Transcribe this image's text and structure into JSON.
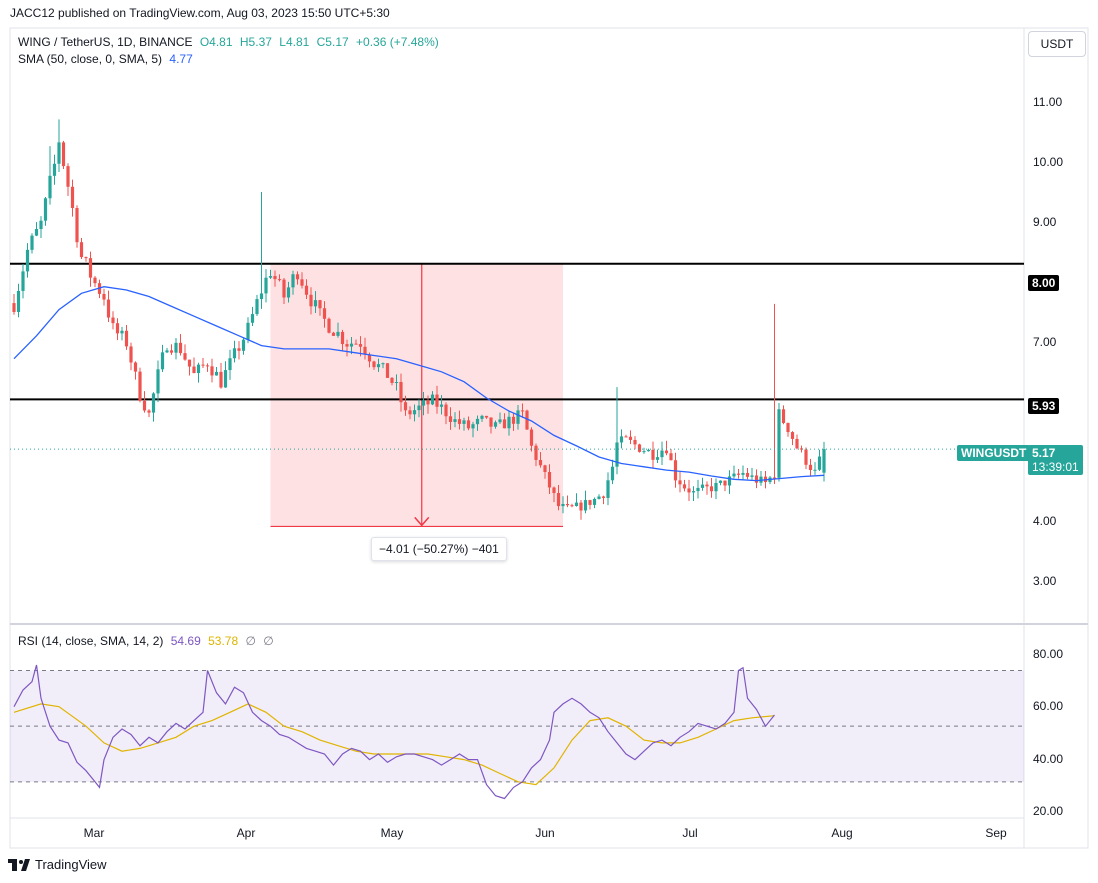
{
  "header": {
    "published": "JACC12 published on TradingView.com, Aug 03, 2023 15:50 UTC+5:30",
    "currency": "USDT"
  },
  "legend": {
    "symbol": "WING / TetherUS, 1D, BINANCE",
    "o": "O4.81",
    "h": "H5.37",
    "l": "L4.81",
    "c": "C5.17",
    "change": "+0.36 (+7.48%)",
    "sma_label": "SMA (50, close, 0, SMA, 5)",
    "sma_value": "4.77"
  },
  "rsi_legend": {
    "label": "RSI (14, close, SMA, 14, 2)",
    "rsi_value": "54.69",
    "ma_value": "53.78",
    "extra1": "∅",
    "extra2": "∅"
  },
  "price_axis": [
    "11.00",
    "10.00",
    "9.00",
    "8.00",
    "7.00",
    "5.93",
    "5.17",
    "4.00",
    "3.00"
  ],
  "rsi_axis": [
    "80.00",
    "60.00",
    "40.00",
    "20.00"
  ],
  "time_axis": [
    "Mar",
    "Apr",
    "May",
    "Jun",
    "Jul",
    "Aug",
    "Sep"
  ],
  "level_badges": {
    "top": "8.00",
    "mid": "5.93"
  },
  "price_badge": {
    "symbol": "WINGUSDT",
    "price": "5.17",
    "countdown": "13:39:01"
  },
  "measure": {
    "label": "−4.01 (−50.27%) −401"
  },
  "footer": {
    "brand": "TradingView"
  },
  "colors": {
    "up": "#26a69a",
    "down": "#ef5350",
    "sma": "#2962ff",
    "rsi": "#7e57c2",
    "rsi_ma": "#e0b400",
    "measure": "#f23645"
  },
  "chart_data": {
    "type": "candlestick",
    "price_ylim": [
      2.5,
      11.6
    ],
    "rsi_ylim": [
      17,
      86
    ],
    "horizontal_levels": [
      8.0,
      5.93
    ],
    "measure_range": {
      "from": 8.0,
      "to": 3.99,
      "start": "2023-04-08",
      "end": "2023-06-12"
    },
    "price_path": [
      [
        0,
        7.4
      ],
      [
        3,
        8.2
      ],
      [
        6,
        8.6
      ],
      [
        9,
        9.5
      ],
      [
        10,
        9.9
      ],
      [
        12,
        9.2
      ],
      [
        15,
        8.1
      ],
      [
        18,
        7.7
      ],
      [
        20,
        7.5
      ],
      [
        22,
        7.0
      ],
      [
        25,
        6.8
      ],
      [
        28,
        6.0
      ],
      [
        30,
        5.7
      ],
      [
        32,
        6.3
      ],
      [
        34,
        6.8
      ],
      [
        37,
        6.7
      ],
      [
        40,
        6.3
      ],
      [
        43,
        6.5
      ],
      [
        46,
        6.2
      ],
      [
        49,
        6.6
      ],
      [
        52,
        7.0
      ],
      [
        55,
        7.6
      ],
      [
        57,
        7.9
      ],
      [
        60,
        7.5
      ],
      [
        63,
        7.9
      ],
      [
        65,
        7.6
      ],
      [
        68,
        7.2
      ],
      [
        71,
        7.0
      ],
      [
        74,
        6.8
      ],
      [
        77,
        6.8
      ],
      [
        80,
        6.5
      ],
      [
        83,
        6.3
      ],
      [
        85,
        6.1
      ],
      [
        87,
        5.7
      ],
      [
        90,
        5.8
      ],
      [
        93,
        5.9
      ],
      [
        95,
        5.8
      ],
      [
        98,
        5.6
      ],
      [
        101,
        5.5
      ],
      [
        104,
        5.6
      ],
      [
        107,
        5.5
      ],
      [
        110,
        5.6
      ],
      [
        113,
        5.7
      ],
      [
        115,
        5.2
      ],
      [
        117,
        4.9
      ],
      [
        119,
        4.6
      ],
      [
        121,
        4.3
      ],
      [
        123,
        4.25
      ],
      [
        126,
        4.3
      ],
      [
        129,
        4.4
      ],
      [
        131,
        4.5
      ],
      [
        133,
        4.9
      ],
      [
        134,
        5.25
      ],
      [
        136,
        5.3
      ],
      [
        139,
        5.2
      ],
      [
        142,
        5.1
      ],
      [
        145,
        5.2
      ],
      [
        147,
        4.75
      ],
      [
        149,
        4.6
      ],
      [
        151,
        4.5
      ],
      [
        153,
        4.55
      ],
      [
        156,
        4.6
      ],
      [
        159,
        4.7
      ],
      [
        162,
        4.8
      ],
      [
        165,
        4.7
      ],
      [
        167,
        4.65
      ],
      [
        169,
        4.8
      ],
      [
        170,
        5.7
      ],
      [
        172,
        5.5
      ],
      [
        174,
        5.2
      ],
      [
        176,
        5.0
      ],
      [
        178,
        4.81
      ],
      [
        180,
        5.17
      ]
    ],
    "candle_count": 181,
    "start_date": "2023-02-10",
    "sma_50": [
      [
        0,
        6.55
      ],
      [
        5,
        6.9
      ],
      [
        10,
        7.3
      ],
      [
        15,
        7.55
      ],
      [
        20,
        7.65
      ],
      [
        25,
        7.6
      ],
      [
        30,
        7.5
      ],
      [
        35,
        7.35
      ],
      [
        40,
        7.2
      ],
      [
        45,
        7.05
      ],
      [
        50,
        6.9
      ],
      [
        55,
        6.75
      ],
      [
        60,
        6.7
      ],
      [
        65,
        6.7
      ],
      [
        70,
        6.7
      ],
      [
        75,
        6.65
      ],
      [
        80,
        6.6
      ],
      [
        85,
        6.55
      ],
      [
        90,
        6.45
      ],
      [
        95,
        6.35
      ],
      [
        100,
        6.2
      ],
      [
        105,
        5.95
      ],
      [
        110,
        5.75
      ],
      [
        115,
        5.6
      ],
      [
        120,
        5.38
      ],
      [
        125,
        5.22
      ],
      [
        130,
        5.05
      ],
      [
        135,
        4.95
      ],
      [
        140,
        4.9
      ],
      [
        145,
        4.85
      ],
      [
        150,
        4.82
      ],
      [
        155,
        4.76
      ],
      [
        160,
        4.71
      ],
      [
        165,
        4.69
      ],
      [
        170,
        4.72
      ],
      [
        175,
        4.75
      ],
      [
        180,
        4.77
      ]
    ],
    "rsi": [
      [
        0,
        57
      ],
      [
        2,
        63
      ],
      [
        4,
        66
      ],
      [
        5,
        72
      ],
      [
        6,
        60
      ],
      [
        8,
        50
      ],
      [
        10,
        45
      ],
      [
        12,
        44
      ],
      [
        14,
        37
      ],
      [
        16,
        34
      ],
      [
        18,
        30
      ],
      [
        19,
        28
      ],
      [
        20,
        38
      ],
      [
        22,
        46
      ],
      [
        24,
        49
      ],
      [
        26,
        47
      ],
      [
        28,
        43
      ],
      [
        30,
        46
      ],
      [
        32,
        44
      ],
      [
        34,
        48
      ],
      [
        36,
        51
      ],
      [
        38,
        49
      ],
      [
        40,
        52
      ],
      [
        42,
        55
      ],
      [
        43,
        70
      ],
      [
        45,
        62
      ],
      [
        47,
        58
      ],
      [
        49,
        64
      ],
      [
        51,
        62
      ],
      [
        53,
        55
      ],
      [
        55,
        52
      ],
      [
        57,
        50
      ],
      [
        59,
        47
      ],
      [
        61,
        46
      ],
      [
        63,
        44
      ],
      [
        65,
        42
      ],
      [
        67,
        41
      ],
      [
        69,
        40
      ],
      [
        71,
        36
      ],
      [
        73,
        40
      ],
      [
        75,
        42
      ],
      [
        77,
        41
      ],
      [
        79,
        38
      ],
      [
        81,
        40
      ],
      [
        83,
        37
      ],
      [
        85,
        39
      ],
      [
        87,
        40
      ],
      [
        89,
        40
      ],
      [
        91,
        39
      ],
      [
        93,
        38
      ],
      [
        95,
        36
      ],
      [
        97,
        38
      ],
      [
        99,
        40
      ],
      [
        101,
        38
      ],
      [
        103,
        38
      ],
      [
        105,
        29
      ],
      [
        107,
        25
      ],
      [
        109,
        24
      ],
      [
        111,
        28
      ],
      [
        113,
        30
      ],
      [
        115,
        35
      ],
      [
        117,
        38
      ],
      [
        119,
        45
      ],
      [
        120,
        55
      ],
      [
        122,
        58
      ],
      [
        124,
        60
      ],
      [
        126,
        58
      ],
      [
        128,
        55
      ],
      [
        130,
        53
      ],
      [
        132,
        48
      ],
      [
        134,
        44
      ],
      [
        136,
        40
      ],
      [
        138,
        38
      ],
      [
        140,
        41
      ],
      [
        142,
        44
      ],
      [
        144,
        45
      ],
      [
        146,
        43
      ],
      [
        148,
        46
      ],
      [
        150,
        48
      ],
      [
        152,
        51
      ],
      [
        154,
        50
      ],
      [
        156,
        49
      ],
      [
        158,
        51
      ],
      [
        160,
        55
      ],
      [
        161,
        70
      ],
      [
        162,
        71
      ],
      [
        163,
        60
      ],
      [
        165,
        56
      ],
      [
        167,
        50
      ],
      [
        169,
        54
      ]
    ],
    "rsi_ma": [
      [
        0,
        55
      ],
      [
        6,
        58
      ],
      [
        10,
        57
      ],
      [
        16,
        50
      ],
      [
        20,
        44
      ],
      [
        24,
        41
      ],
      [
        28,
        42
      ],
      [
        32,
        44
      ],
      [
        36,
        46
      ],
      [
        40,
        50
      ],
      [
        44,
        52
      ],
      [
        48,
        55
      ],
      [
        52,
        58
      ],
      [
        56,
        55
      ],
      [
        60,
        50
      ],
      [
        64,
        48
      ],
      [
        68,
        45
      ],
      [
        72,
        43
      ],
      [
        76,
        41
      ],
      [
        80,
        40
      ],
      [
        84,
        40
      ],
      [
        88,
        40
      ],
      [
        92,
        40
      ],
      [
        96,
        39
      ],
      [
        100,
        38
      ],
      [
        104,
        36
      ],
      [
        108,
        33
      ],
      [
        112,
        30
      ],
      [
        116,
        29
      ],
      [
        120,
        35
      ],
      [
        124,
        45
      ],
      [
        128,
        52
      ],
      [
        132,
        53
      ],
      [
        136,
        50
      ],
      [
        140,
        45
      ],
      [
        144,
        44
      ],
      [
        148,
        44
      ],
      [
        152,
        46
      ],
      [
        156,
        49
      ],
      [
        160,
        52
      ],
      [
        164,
        53
      ],
      [
        169,
        53.78
      ]
    ],
    "rsi_levels": [
      70,
      50,
      30
    ]
  }
}
